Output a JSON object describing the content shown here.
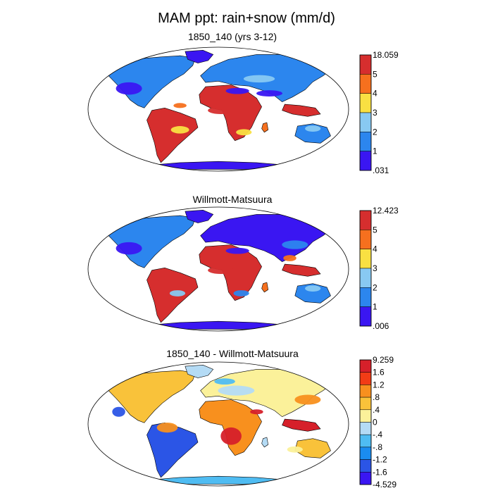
{
  "title": "MAM ppt: rain+snow (mm/d)",
  "colors": {
    "ocean": "#ffffff",
    "outline": "#000000",
    "land_fallback": "#2a3de6"
  },
  "panels": [
    {
      "id": "model",
      "title": "1850_140 (yrs 3-12)",
      "colorbar": {
        "labels": [
          "18.059",
          "5",
          "4",
          "3",
          "2",
          "1",
          ".031"
        ],
        "colors": [
          "#d62e2e",
          "#f6701e",
          "#f9e042",
          "#88c9f2",
          "#2c86ee",
          "#3a16f2"
        ]
      }
    },
    {
      "id": "obs",
      "title": "Willmott-Matsuura",
      "colorbar": {
        "labels": [
          "12.423",
          "5",
          "4",
          "3",
          "2",
          "1",
          ".006"
        ],
        "colors": [
          "#d62e2e",
          "#f6701e",
          "#f9e042",
          "#88c9f2",
          "#2c86ee",
          "#3a16f2"
        ]
      }
    },
    {
      "id": "diff",
      "title": "1850_140 - Willmott-Matsuura",
      "colorbar": {
        "labels": [
          "9.259",
          "1.6",
          "1.2",
          ".8",
          ".4",
          "0",
          "-.4",
          "-.8",
          "-1.2",
          "-1.6",
          "-4.529"
        ],
        "colors": [
          "#d6202a",
          "#f23c16",
          "#f8901e",
          "#f9c23a",
          "#fbf19a",
          "#b4dbf5",
          "#4fbcf2",
          "#1a8cf0",
          "#2b55e6",
          "#3a16f2"
        ]
      }
    }
  ]
}
